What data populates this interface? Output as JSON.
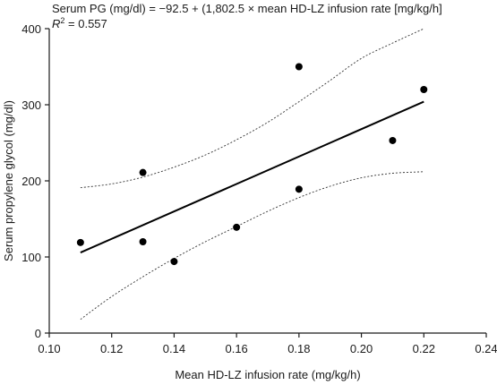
{
  "chart_data": {
    "type": "scatter",
    "annotation": {
      "equation": "Serum PG (mg/dl) = −92.5 + (1,802.5 × mean HD-LZ infusion rate [mg/kg/h]",
      "r2_prefix": "R",
      "r2_superscript": "2",
      "r2_value": " = 0.557"
    },
    "xlabel": "Mean HD-LZ infusion rate (mg/kg/h)",
    "ylabel": "Serum propylene glycol (mg/dl)",
    "xlim": [
      0.1,
      0.24
    ],
    "ylim": [
      0,
      400
    ],
    "xticks": [
      0.1,
      0.12,
      0.14,
      0.16,
      0.18,
      0.2,
      0.22,
      0.24
    ],
    "xtick_labels": [
      "0.10",
      "0.12",
      "0.14",
      "0.16",
      "0.18",
      "0.20",
      "0.22",
      "0.24"
    ],
    "yticks": [
      0,
      100,
      200,
      300,
      400
    ],
    "ytick_labels": [
      "0",
      "100",
      "200",
      "300",
      "400"
    ],
    "points": [
      {
        "x": 0.11,
        "y": 119
      },
      {
        "x": 0.13,
        "y": 211
      },
      {
        "x": 0.13,
        "y": 120
      },
      {
        "x": 0.14,
        "y": 94
      },
      {
        "x": 0.16,
        "y": 139
      },
      {
        "x": 0.18,
        "y": 350
      },
      {
        "x": 0.18,
        "y": 189
      },
      {
        "x": 0.21,
        "y": 253
      },
      {
        "x": 0.22,
        "y": 320
      }
    ],
    "fit_line": {
      "intercept": -92.5,
      "slope": 1802.5,
      "x_range": [
        0.11,
        0.22
      ]
    },
    "confidence_band": {
      "upper": [
        {
          "x": 0.11,
          "y": 191
        },
        {
          "x": 0.12,
          "y": 196
        },
        {
          "x": 0.13,
          "y": 205
        },
        {
          "x": 0.14,
          "y": 218
        },
        {
          "x": 0.15,
          "y": 234
        },
        {
          "x": 0.16,
          "y": 254
        },
        {
          "x": 0.17,
          "y": 277
        },
        {
          "x": 0.18,
          "y": 304
        },
        {
          "x": 0.19,
          "y": 332
        },
        {
          "x": 0.2,
          "y": 361
        },
        {
          "x": 0.21,
          "y": 381
        },
        {
          "x": 0.22,
          "y": 400
        }
      ],
      "lower": [
        {
          "x": 0.11,
          "y": 18
        },
        {
          "x": 0.12,
          "y": 48
        },
        {
          "x": 0.13,
          "y": 74
        },
        {
          "x": 0.14,
          "y": 98
        },
        {
          "x": 0.15,
          "y": 120
        },
        {
          "x": 0.16,
          "y": 140
        },
        {
          "x": 0.17,
          "y": 160
        },
        {
          "x": 0.18,
          "y": 178
        },
        {
          "x": 0.19,
          "y": 193
        },
        {
          "x": 0.2,
          "y": 204
        },
        {
          "x": 0.21,
          "y": 210
        },
        {
          "x": 0.22,
          "y": 212
        }
      ]
    },
    "grid": false,
    "legend": "none"
  }
}
